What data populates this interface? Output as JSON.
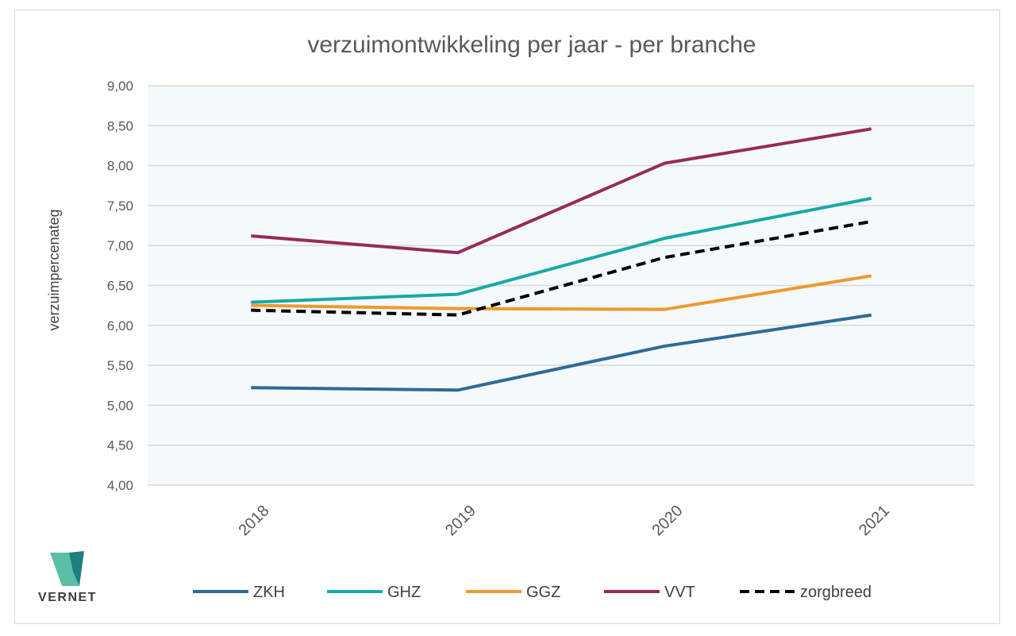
{
  "chart_data": {
    "type": "line",
    "title": "verzuimontwikkeling per jaar - per branche",
    "xlabel": "",
    "ylabel": "verzuimpercenateg",
    "categories": [
      "2018",
      "2019",
      "2020",
      "2021"
    ],
    "ylim": [
      4.0,
      9.0
    ],
    "yticks": [
      "4,00",
      "4,50",
      "5,00",
      "5,50",
      "6,00",
      "6,50",
      "7,00",
      "7,50",
      "8,00",
      "8,50",
      "9,00"
    ],
    "grid": true,
    "legend_position": "bottom",
    "series": [
      {
        "name": "ZKH",
        "color": "#2e6a96",
        "dashed": false,
        "values": [
          5.22,
          5.19,
          5.74,
          6.13
        ]
      },
      {
        "name": "GHZ",
        "color": "#17a9a6",
        "dashed": false,
        "values": [
          6.29,
          6.39,
          7.09,
          7.59
        ]
      },
      {
        "name": "GGZ",
        "color": "#ec9a2f",
        "dashed": false,
        "values": [
          6.25,
          6.21,
          6.2,
          6.62
        ]
      },
      {
        "name": "VVT",
        "color": "#962a5b",
        "dashed": false,
        "values": [
          7.12,
          6.91,
          8.03,
          8.46
        ]
      },
      {
        "name": "zorgbreed",
        "color": "#000000",
        "dashed": true,
        "values": [
          6.19,
          6.13,
          6.85,
          7.3
        ]
      }
    ]
  },
  "logo": {
    "text": "VERNET"
  }
}
